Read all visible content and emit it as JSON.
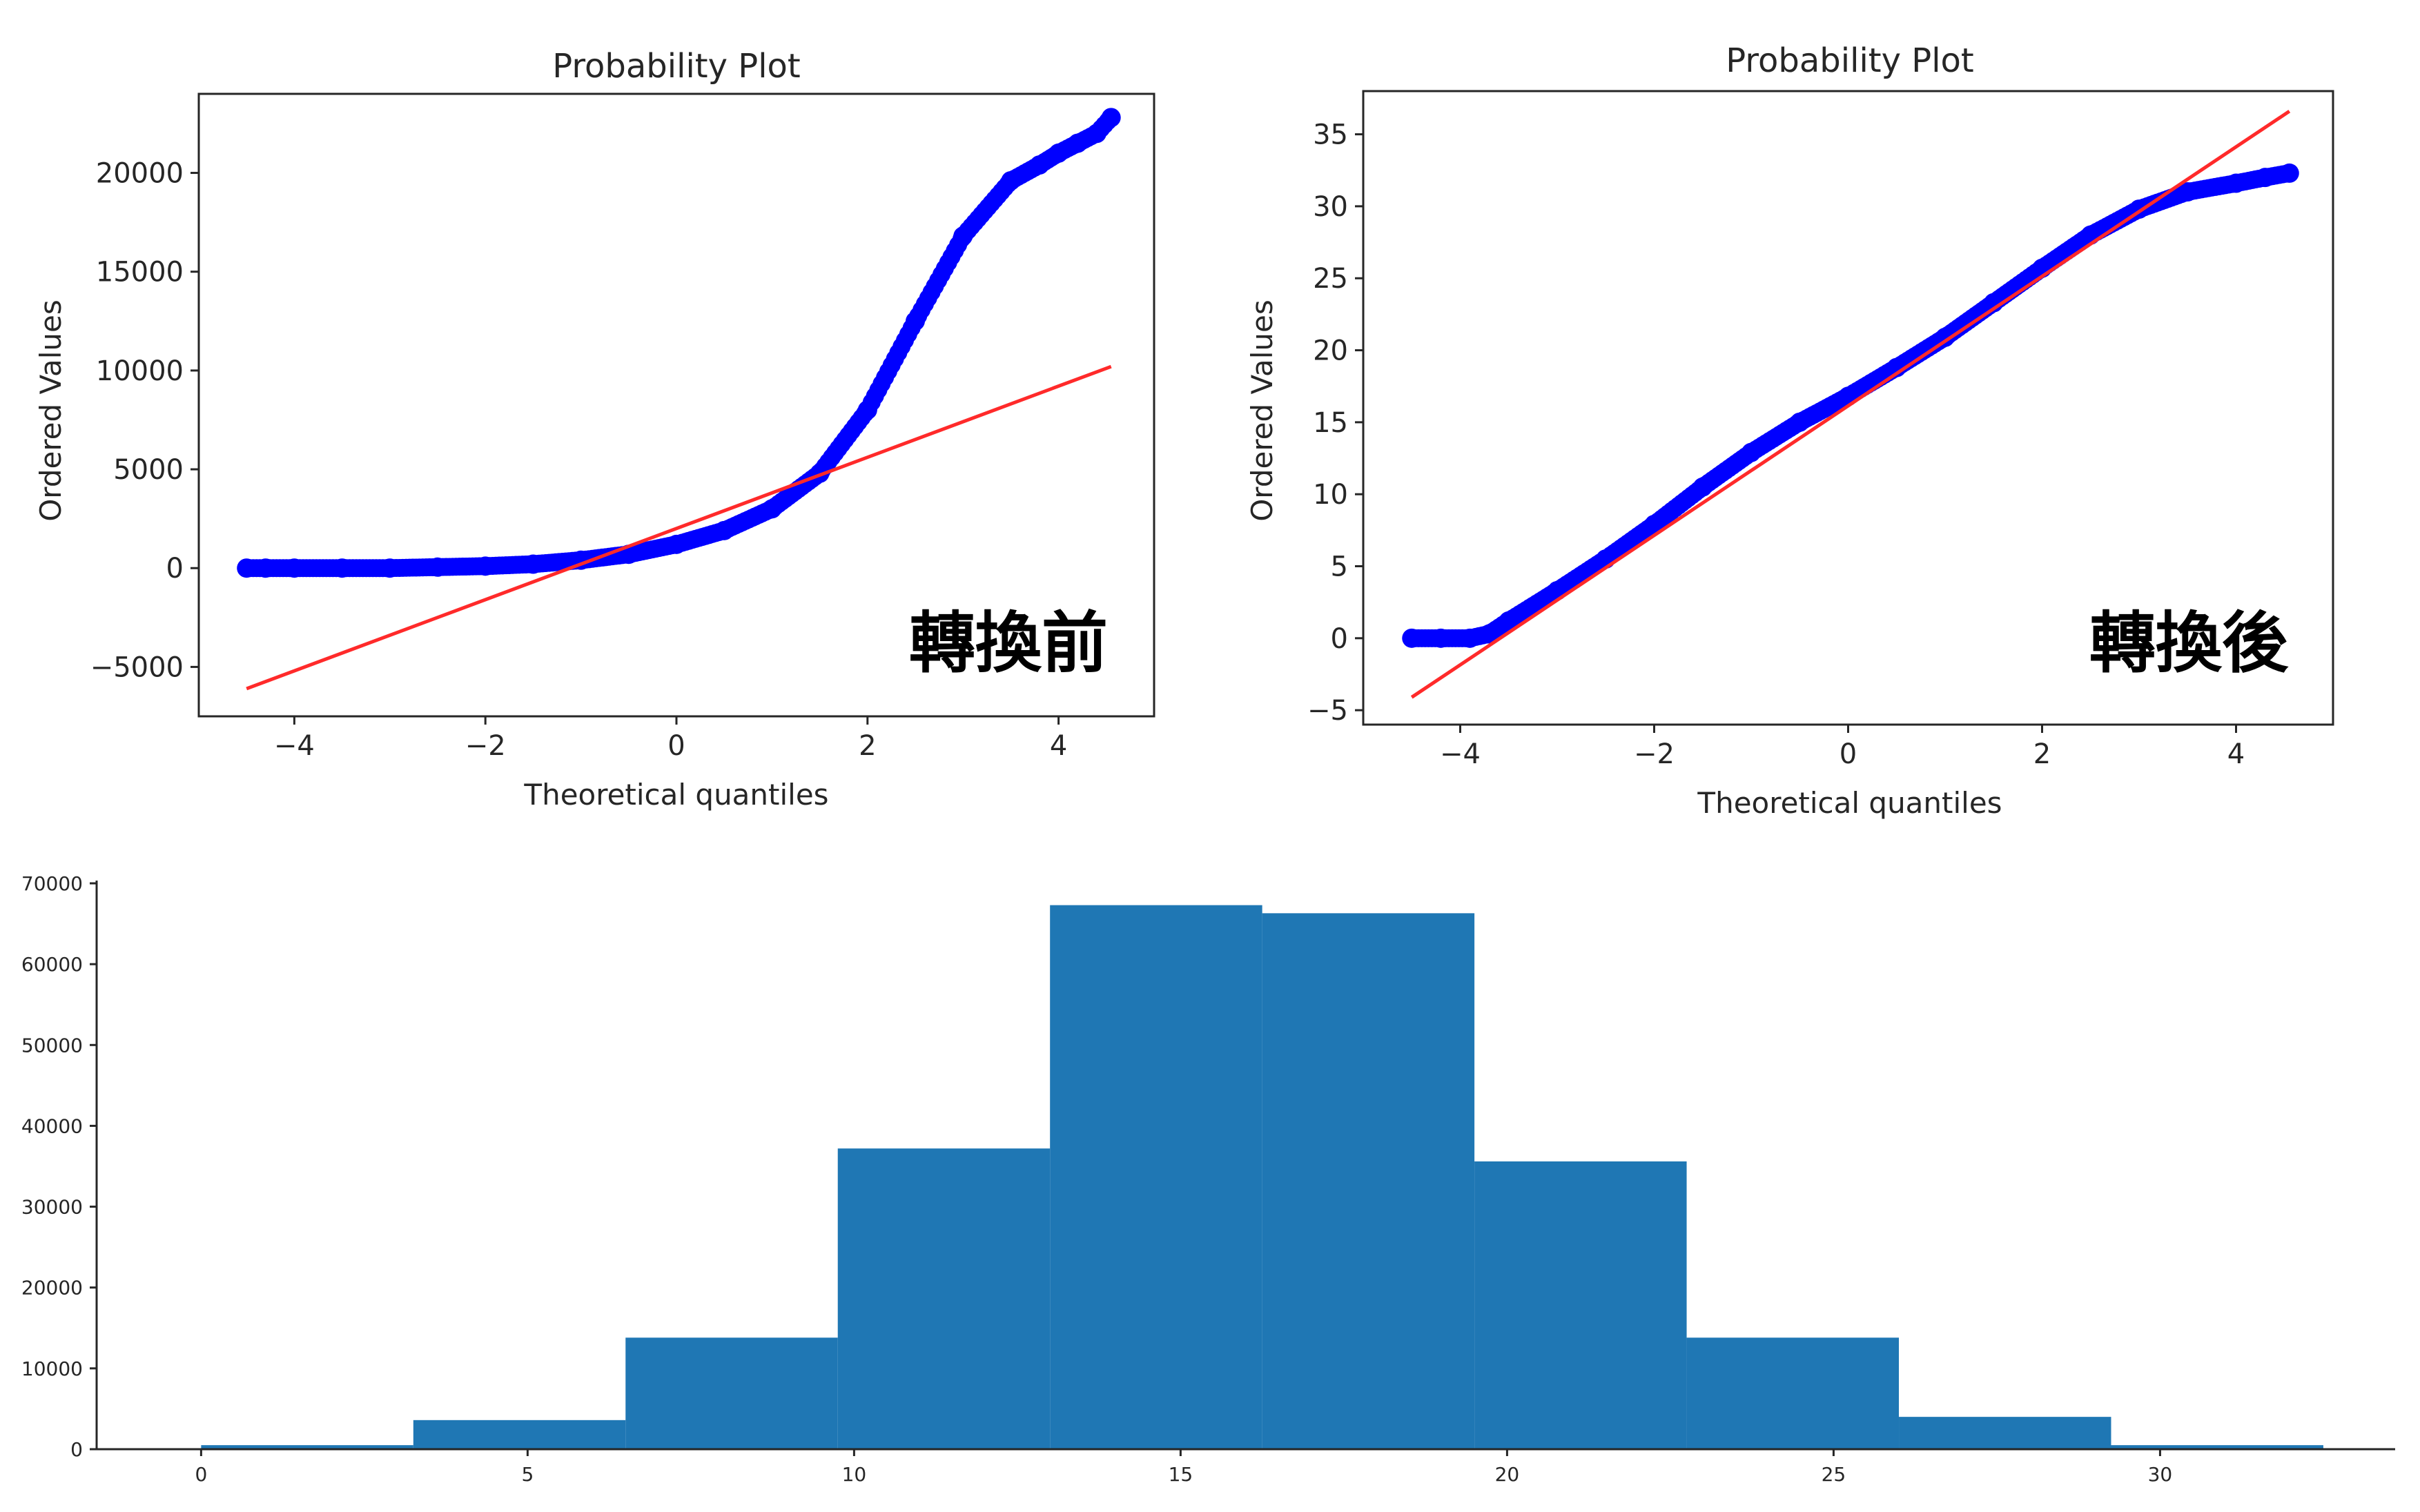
{
  "colors": {
    "points": "#0000ff",
    "fit_line": "#ff2a2a",
    "hist_bar": "#1f77b4",
    "axis": "#262626"
  },
  "chart_data": [
    {
      "type": "scatter",
      "title": "Probability Plot",
      "xlabel": "Theoretical quantiles",
      "ylabel": "Ordered Values",
      "annotation": "轉換前",
      "xlim": [
        -5,
        5
      ],
      "ylim": [
        -7500,
        24000
      ],
      "xticks": [
        -4,
        -2,
        0,
        2,
        4
      ],
      "xtick_labels": [
        "−4",
        "−2",
        "0",
        "2",
        "4"
      ],
      "yticks": [
        -5000,
        0,
        5000,
        10000,
        15000,
        20000
      ],
      "ytick_labels": [
        "−5000",
        "0",
        "5000",
        "10000",
        "15000",
        "20000"
      ],
      "points": [
        [
          -4.5,
          0
        ],
        [
          -4.3,
          0
        ],
        [
          -4.0,
          0
        ],
        [
          -3.5,
          0
        ],
        [
          -3.0,
          0
        ],
        [
          -2.5,
          50
        ],
        [
          -2.0,
          100
        ],
        [
          -1.5,
          200
        ],
        [
          -1.0,
          400
        ],
        [
          -0.5,
          700
        ],
        [
          0.0,
          1200
        ],
        [
          0.5,
          1900
        ],
        [
          1.0,
          3000
        ],
        [
          1.5,
          4800
        ],
        [
          2.0,
          8000
        ],
        [
          2.5,
          12500
        ],
        [
          3.0,
          16800
        ],
        [
          3.5,
          19600
        ],
        [
          3.8,
          20400
        ],
        [
          4.0,
          21000
        ],
        [
          4.2,
          21500
        ],
        [
          4.4,
          22000
        ],
        [
          4.55,
          22800
        ]
      ],
      "fit_line": {
        "x": [
          -4.5,
          4.55
        ],
        "y": [
          -6100,
          10200
        ]
      },
      "grid": false
    },
    {
      "type": "scatter",
      "title": "Probability Plot",
      "xlabel": "Theoretical quantiles",
      "ylabel": "Ordered Values",
      "annotation": "轉換後",
      "xlim": [
        -5,
        5
      ],
      "ylim": [
        -6,
        38
      ],
      "xticks": [
        -4,
        -2,
        0,
        2,
        4
      ],
      "xtick_labels": [
        "−4",
        "−2",
        "0",
        "2",
        "4"
      ],
      "yticks": [
        -5,
        0,
        5,
        10,
        15,
        20,
        25,
        30,
        35
      ],
      "ytick_labels": [
        "−5",
        "0",
        "5",
        "10",
        "15",
        "20",
        "25",
        "30",
        "35"
      ],
      "points": [
        [
          -4.5,
          0
        ],
        [
          -4.2,
          0
        ],
        [
          -3.9,
          0
        ],
        [
          -3.7,
          0.3
        ],
        [
          -3.5,
          1.2
        ],
        [
          -3.0,
          3.3
        ],
        [
          -2.5,
          5.5
        ],
        [
          -2.0,
          7.9
        ],
        [
          -1.5,
          10.5
        ],
        [
          -1.0,
          12.9
        ],
        [
          -0.5,
          15.0
        ],
        [
          0.0,
          16.8
        ],
        [
          0.5,
          18.8
        ],
        [
          1.0,
          20.9
        ],
        [
          1.5,
          23.3
        ],
        [
          2.0,
          25.7
        ],
        [
          2.5,
          28.0
        ],
        [
          3.0,
          29.8
        ],
        [
          3.5,
          31.0
        ],
        [
          4.0,
          31.6
        ],
        [
          4.3,
          32.0
        ],
        [
          4.55,
          32.3
        ]
      ],
      "fit_line": {
        "x": [
          -4.5,
          4.55
        ],
        "y": [
          -4.1,
          36.6
        ]
      },
      "grid": false
    },
    {
      "type": "bar",
      "subtype": "histogram",
      "xlim": [
        -1.6,
        33.6
      ],
      "ylim": [
        0,
        70000
      ],
      "xticks": [
        0,
        5,
        10,
        15,
        20,
        25,
        30
      ],
      "xtick_labels": [
        "0",
        "5",
        "10",
        "15",
        "20",
        "25",
        "30"
      ],
      "yticks": [
        0,
        10000,
        20000,
        30000,
        40000,
        50000,
        60000,
        70000
      ],
      "ytick_labels": [
        "0",
        "10000",
        "20000",
        "30000",
        "40000",
        "50000",
        "60000",
        "70000"
      ],
      "bin_edges": [
        0,
        3.25,
        6.5,
        9.75,
        13.0,
        16.25,
        19.5,
        22.75,
        26.0,
        29.25,
        32.5
      ],
      "values": [
        500,
        3600,
        13800,
        37200,
        67300,
        66300,
        35600,
        13800,
        4000,
        500
      ],
      "grid": false
    }
  ]
}
